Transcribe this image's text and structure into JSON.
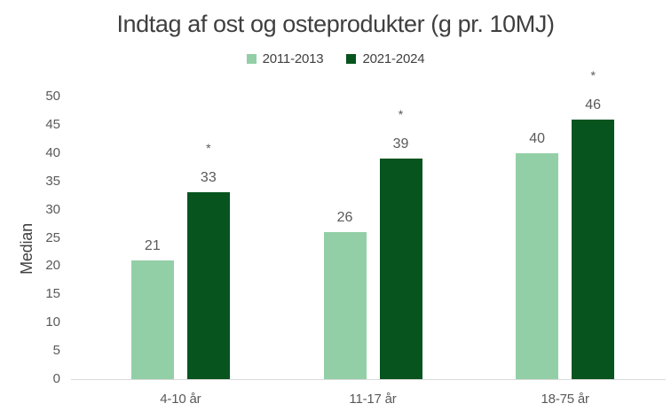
{
  "chart_data": {
    "type": "bar",
    "title": "Indtag af ost og osteprodukter (g pr. 10MJ)",
    "ylabel": "Median",
    "xlabel": "",
    "categories": [
      "4-10 år",
      "11-17 år",
      "18-75 år"
    ],
    "series": [
      {
        "name": "2011-2013",
        "color": "#93cfa6",
        "values": [
          21,
          26,
          40
        ],
        "significance": [
          "",
          "",
          ""
        ]
      },
      {
        "name": "2021-2024",
        "color": "#07541f",
        "values": [
          33,
          39,
          46
        ],
        "significance": [
          "*",
          "*",
          "*"
        ]
      }
    ],
    "ylim": [
      0,
      50
    ],
    "ytick_step": 5,
    "yticks": [
      0,
      5,
      10,
      15,
      20,
      25,
      30,
      35,
      40,
      45,
      50
    ],
    "legend_position": "top-center",
    "grid": false,
    "significance_marker": "*"
  },
  "colors": {
    "title_text": "#3f3f3f",
    "axis_text": "#595959",
    "data_label_text": "#595959",
    "legend_text": "#404040",
    "axis_line": "#d9d9d9",
    "series_light": "#93cfa6",
    "series_dark": "#07541f"
  }
}
